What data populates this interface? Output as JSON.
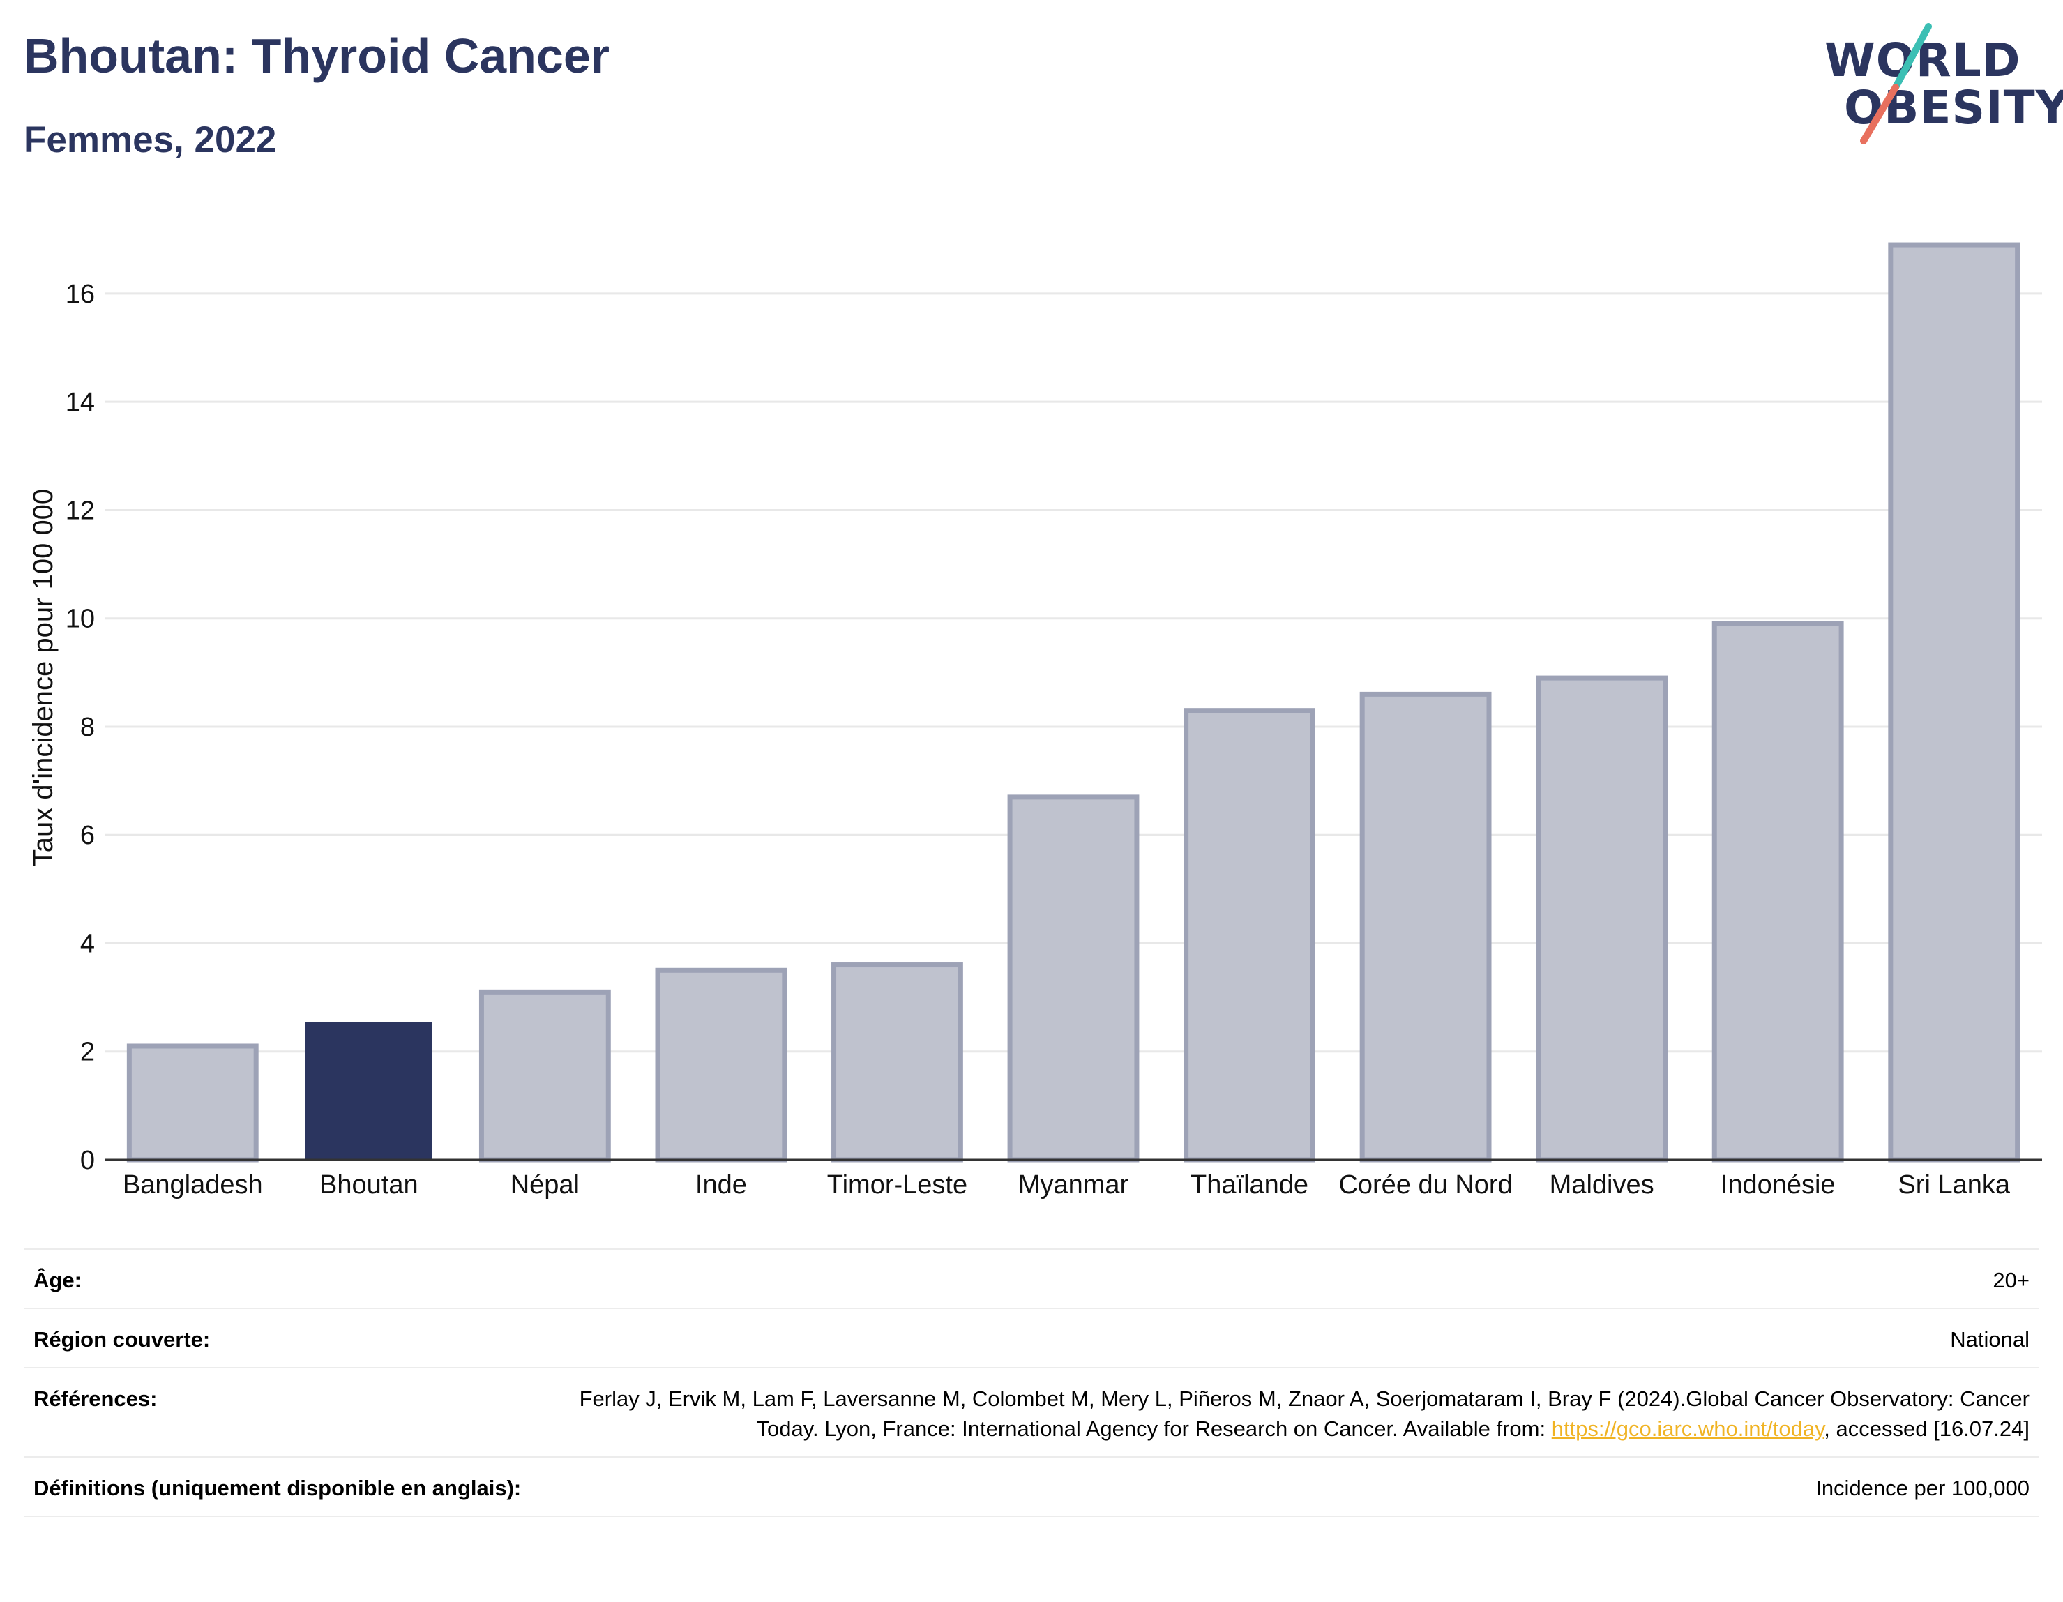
{
  "header": {
    "title": "Bhoutan: Thyroid Cancer",
    "subtitle": "Femmes, 2022"
  },
  "logo": {
    "line1": "WORLD",
    "line2": "OBESITY"
  },
  "colors": {
    "highlight": "#2b355f",
    "bar_fill": "#bfc2ce",
    "bar_stroke": "#9da2b6",
    "accent_teal": "#3cbfb4",
    "accent_coral": "#e8705e",
    "link": "#f0b323"
  },
  "chart_data": {
    "type": "bar",
    "ylabel": "Taux d'incidence pour 100 000",
    "xlabel": "",
    "ylim": [
      0,
      17.3
    ],
    "yticks": [
      0,
      2,
      4,
      6,
      8,
      10,
      12,
      14,
      16
    ],
    "grid": true,
    "highlight": "Bhoutan",
    "categories": [
      "Bangladesh",
      "Bhoutan",
      "Népal",
      "Inde",
      "Timor-Leste",
      "Myanmar",
      "Thaïlande",
      "Corée du Nord",
      "Maldives",
      "Indonésie",
      "Sri Lanka"
    ],
    "values": [
      2.1,
      2.55,
      3.1,
      3.5,
      3.6,
      6.7,
      8.3,
      8.6,
      8.9,
      9.9,
      16.9
    ]
  },
  "meta": {
    "age_label": "Âge:",
    "age_value": "20+",
    "region_label": "Région couverte:",
    "region_value": "National",
    "refs_label": "Références:",
    "refs_text_1": "Ferlay J, Ervik M, Lam F, Laversanne M, Colombet M, Mery L, Piñeros M, Znaor A, Soerjomataram I, Bray F (2024).Global Cancer Observatory: Cancer Today. Lyon, France: International Agency for Research on Cancer. Available from: ",
    "refs_link": "https://gco.iarc.who.int/today",
    "refs_text_2": ", accessed [16.07.24]",
    "defs_label": "Définitions (uniquement disponible en anglais):",
    "defs_value": "Incidence per 100,000"
  }
}
